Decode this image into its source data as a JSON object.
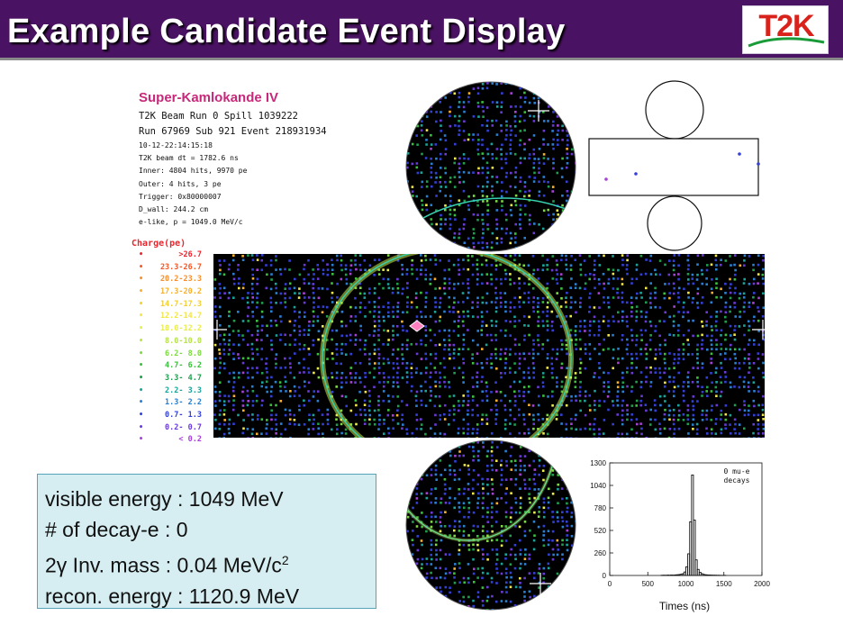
{
  "slide": {
    "title": "Example Candidate Event Display",
    "logo_text": "T2K",
    "banner_color": "#4a1262"
  },
  "event_info": {
    "detector": "Super-Kamlokande IV",
    "lines_big": [
      "T2K Beam Run 0 Spill 1039222",
      "Run 67969 Sub 921 Event 218931934"
    ],
    "lines_small": [
      "10-12-22:14:15:18",
      "T2K beam dt =  1782.6 ns",
      "Inner: 4804 hits, 9970 pe",
      "Outer: 4 hits, 3 pe",
      "Trigger: 0x80000007",
      "D_wall: 244.2 cm",
      "e-like, p = 1049.0 MeV/c"
    ]
  },
  "charge_scale": {
    "title": "Charge(pe)",
    "bins": [
      {
        "label": ">26.7",
        "color": "#e8262e"
      },
      {
        "label": "23.3-26.7",
        "color": "#f05a2a"
      },
      {
        "label": "20.2-23.3",
        "color": "#f6902e"
      },
      {
        "label": "17.3-20.2",
        "color": "#f7b12e"
      },
      {
        "label": "14.7-17.3",
        "color": "#f2cf35"
      },
      {
        "label": "12.2-14.7",
        "color": "#f1e64a"
      },
      {
        "label": "10.0-12.2",
        "color": "#e8ee50"
      },
      {
        "label": "8.0-10.0",
        "color": "#b8e24e"
      },
      {
        "label": "6.2- 8.0",
        "color": "#7ed846"
      },
      {
        "label": "4.7- 6.2",
        "color": "#3bbf3f"
      },
      {
        "label": "3.3- 4.7",
        "color": "#1f9e4e"
      },
      {
        "label": "2.2- 3.3",
        "color": "#1aa39a"
      },
      {
        "label": "1.3- 2.2",
        "color": "#2a7fd0"
      },
      {
        "label": "0.7- 1.3",
        "color": "#3340d6"
      },
      {
        "label": "0.2- 0.7",
        "color": "#6a3ad6"
      },
      {
        "label": "< 0.2",
        "color": "#a642d6"
      }
    ]
  },
  "energy_summary": {
    "visible_energy": "visible energy : 1049 MeV",
    "decay_e": "# of decay-e   : 0",
    "inv_mass_label": "2γ Inv. mass   : 0.04 MeV/c",
    "inv_mass_sup": "2",
    "recon_energy": "recon. energy : 1120.9 MeV"
  },
  "chart_data": {
    "type": "bar",
    "title": "",
    "annotation": "0 mu-e decays",
    "xlabel": "Times (ns)",
    "ylabel": "",
    "xlim": [
      0,
      2000
    ],
    "ylim": [
      0,
      1300
    ],
    "x_ticks": [
      "0",
      "500",
      "1000",
      "1500",
      "2000"
    ],
    "y_ticks": [
      "0",
      "260",
      "520",
      "780",
      "1040",
      "1300"
    ],
    "bin_width": 25,
    "x": [
      675,
      700,
      725,
      750,
      775,
      800,
      825,
      850,
      875,
      900,
      925,
      950,
      975,
      1000,
      1025,
      1050,
      1075,
      1100,
      1125,
      1150,
      1175,
      1200,
      1225,
      1250,
      1275,
      1300,
      1325,
      1350,
      1375,
      1400,
      1425,
      1450,
      1475,
      1500
    ],
    "values": [
      2,
      3,
      2,
      4,
      3,
      5,
      4,
      6,
      8,
      10,
      14,
      20,
      40,
      100,
      250,
      620,
      1160,
      640,
      180,
      70,
      35,
      20,
      12,
      8,
      6,
      5,
      4,
      3,
      3,
      2,
      2,
      1,
      1,
      1
    ]
  }
}
